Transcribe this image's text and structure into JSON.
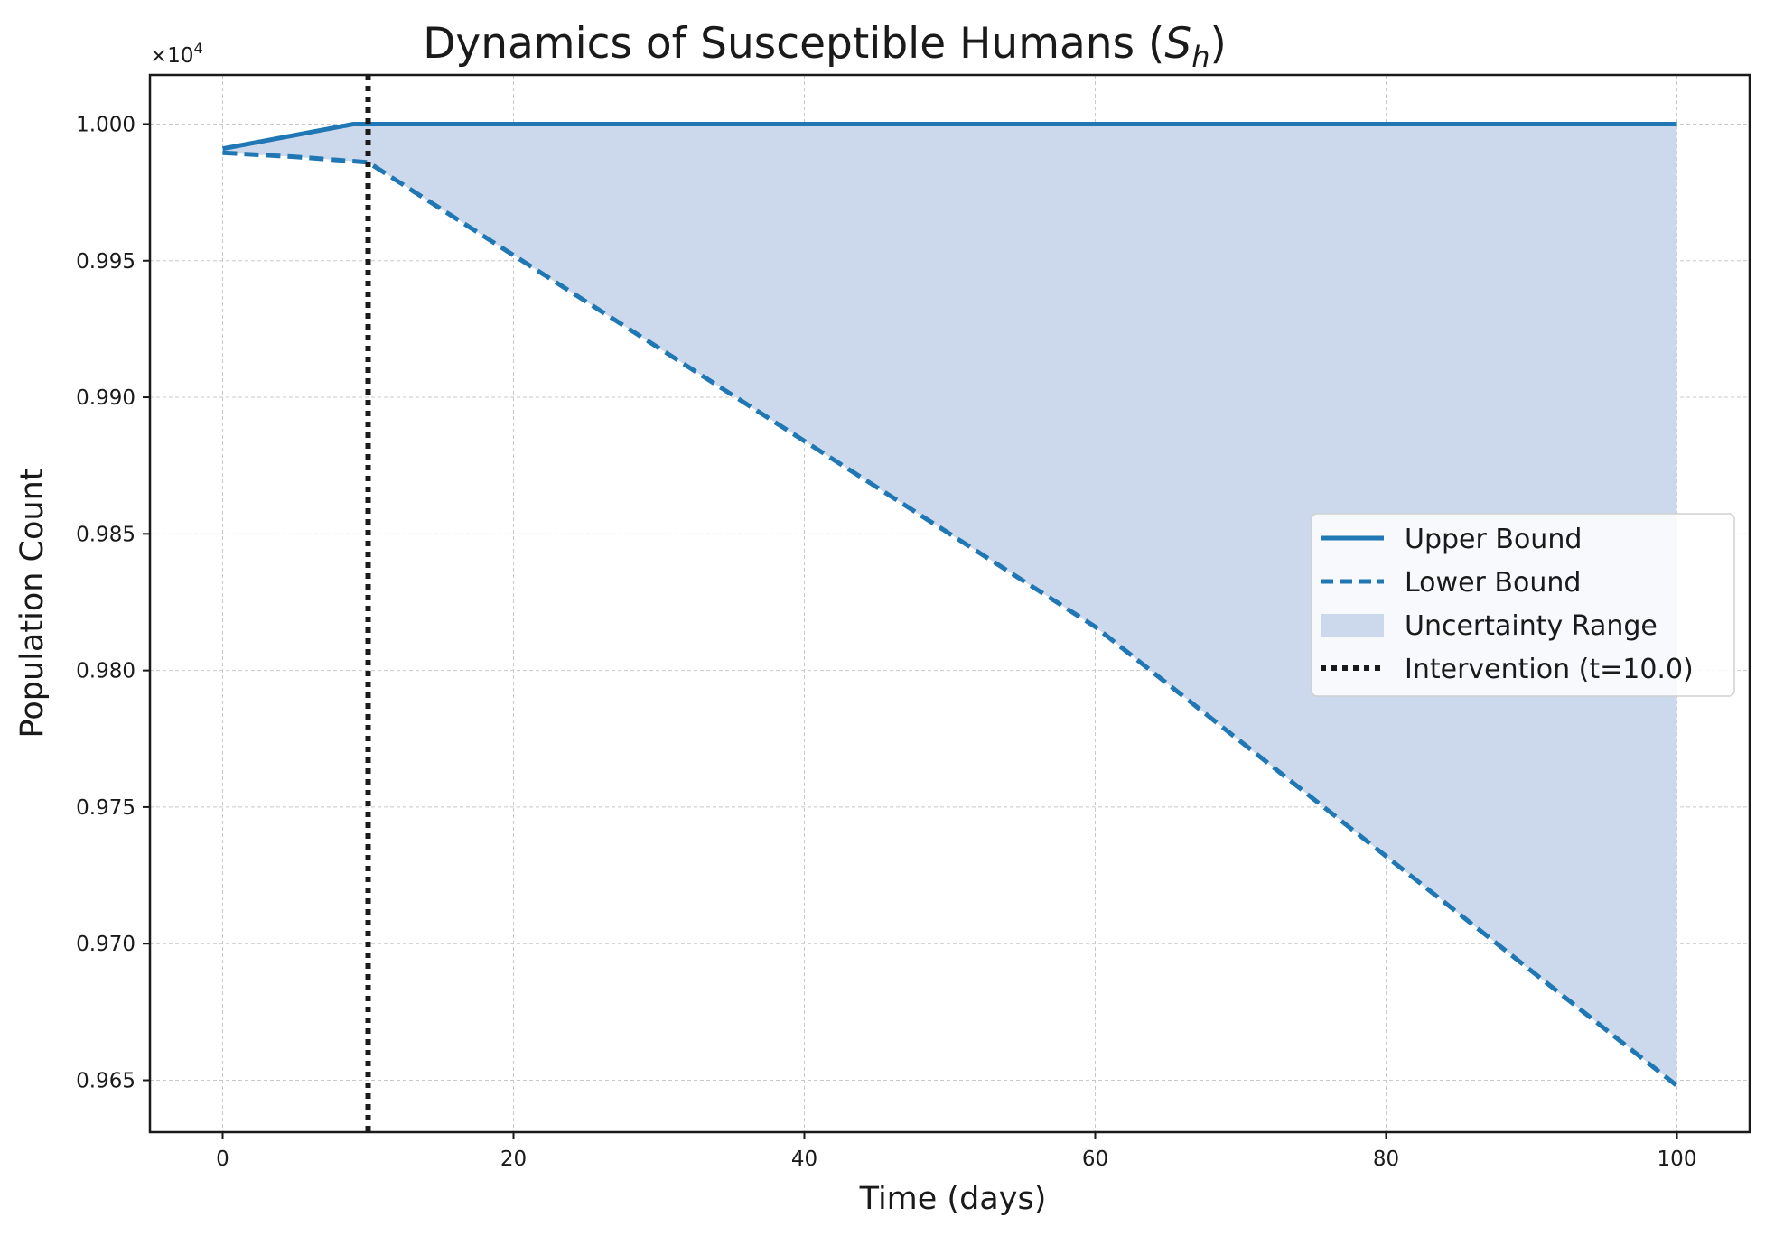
{
  "chart_data": {
    "type": "line",
    "title_prefix": "Dynamics of Susceptible Humans (",
    "title_math_main": "S",
    "title_math_sub": "h",
    "title_suffix": ")",
    "xlabel": "Time (days)",
    "ylabel": "Population Count",
    "y_offset_base": "×10",
    "y_offset_exp": "4",
    "xlim": [
      -5,
      105
    ],
    "ylim": [
      0.9631,
      1.0018
    ],
    "xticks": [
      0,
      20,
      40,
      60,
      80,
      100
    ],
    "xtick_labels": [
      "0",
      "20",
      "40",
      "60",
      "80",
      "100"
    ],
    "yticks": [
      1.0,
      0.995,
      0.99,
      0.985,
      0.98,
      0.975,
      0.97,
      0.965
    ],
    "ytick_labels": [
      "1.000",
      "0.995",
      "0.990",
      "0.985",
      "0.980",
      "0.975",
      "0.970",
      "0.965"
    ],
    "grid": true,
    "legend_position": "center-right",
    "colors": {
      "line": "#1f77b4",
      "fill": "#ccd8ec",
      "intervention": "#1a1a1a",
      "grid": "#c8c8c8",
      "axes": "#1a1a1a"
    },
    "series": [
      {
        "name": "Upper Bound",
        "style": "solid",
        "x": [
          0,
          9,
          10,
          100
        ],
        "y": [
          0.9991,
          1.0,
          1.0,
          1.0
        ]
      },
      {
        "name": "Lower Bound",
        "style": "dashed",
        "x": [
          0,
          5,
          10,
          20,
          40,
          60,
          80,
          100
        ],
        "y": [
          0.99895,
          0.9988,
          0.9986,
          0.9952,
          0.9884,
          0.9816,
          0.9732,
          0.9648
        ]
      }
    ],
    "fill_between": {
      "name": "Uncertainty Range",
      "upper_series": "Upper Bound",
      "lower_series": "Lower Bound"
    },
    "vline": {
      "name": "Intervention (t=10.0)",
      "x": 10,
      "style": "dotted"
    }
  }
}
